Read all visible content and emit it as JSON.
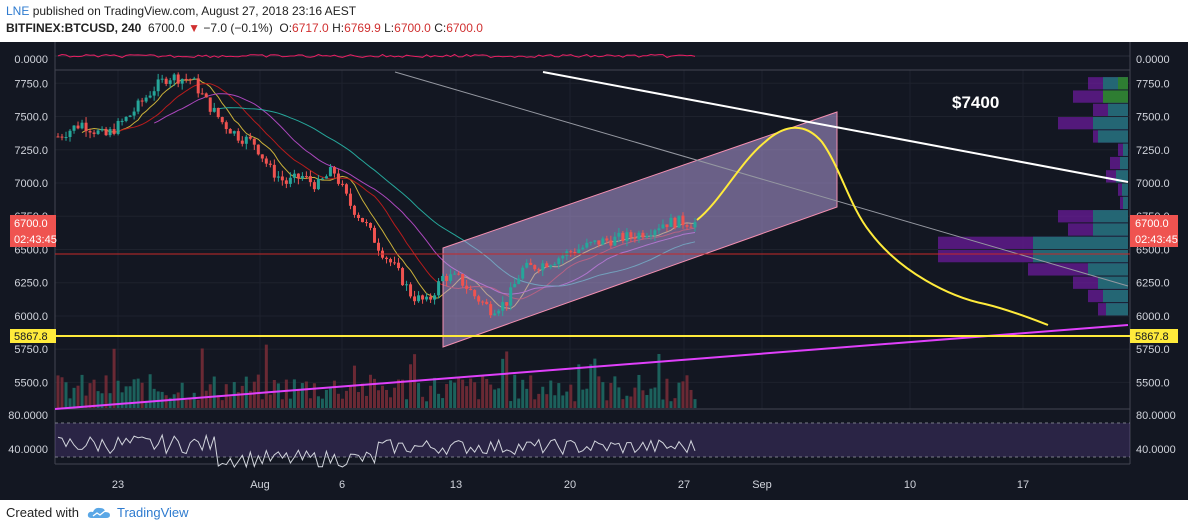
{
  "header": {
    "author": "LNE",
    "published": "published on TradingView.com, August 27, 2018 23:16 AEST",
    "symbol": "BITFINEX:BTCUSD, 240",
    "last": "6700.0",
    "change": "−7.0 (−0.1%)",
    "o_label": "O:",
    "o_value": "6717.0",
    "h_label": "H:",
    "h_value": "6769.9",
    "l_label": "L:",
    "l_value": "6700.0",
    "c_label": "C:",
    "c_value": "6700.0"
  },
  "footer": {
    "created_with": "Created with",
    "brand": "TradingView"
  },
  "colors": {
    "background": "#131722",
    "up": "#26a69a",
    "down": "#ef5350",
    "channel": "#b39ddb",
    "projection": "#ffeb3b",
    "support": "#ffeb3b",
    "trend": "#e040fb",
    "badge": "#ef5350"
  },
  "chart_data": {
    "type": "candlestick",
    "price_axis": {
      "ylim": [
        5300,
        7850
      ],
      "ticks": [
        "7750.0",
        "7500.0",
        "7250.0",
        "7000.0",
        "6750.0",
        "6500.0",
        "6250.0",
        "6000.0",
        "5750.0",
        "5500.0"
      ],
      "tick_values": [
        7750,
        7500,
        7250,
        7000,
        6750,
        6500,
        6250,
        6000,
        5750,
        5500
      ]
    },
    "time_axis": {
      "labels": [
        "23",
        "Aug",
        "6",
        "13",
        "20",
        "27",
        "Sep",
        "10",
        "17"
      ]
    },
    "top_indicator": {
      "label": "0.0000"
    },
    "price_badge": {
      "value": "6700.0",
      "countdown": "02:43:45"
    },
    "support_level": {
      "value": "5867.8",
      "label": "5867.8"
    },
    "annotation": "$7400",
    "rsi": {
      "ticks": [
        "80.0000",
        "40.0000"
      ],
      "tick_values": [
        80,
        40
      ],
      "band": [
        30,
        70
      ]
    },
    "price_path": [
      [
        0,
        7350
      ],
      [
        3,
        7450
      ],
      [
        6,
        7350
      ],
      [
        9,
        7500
      ],
      [
        12,
        7700
      ],
      [
        14,
        7800
      ],
      [
        17,
        7780
      ],
      [
        19,
        7600
      ],
      [
        21,
        7450
      ],
      [
        23,
        7350
      ],
      [
        25,
        7300
      ],
      [
        27,
        7100
      ],
      [
        29,
        7000
      ],
      [
        31,
        7050
      ],
      [
        33,
        6980
      ],
      [
        35,
        7100
      ],
      [
        37,
        6850
      ],
      [
        39,
        6700
      ],
      [
        41,
        6500
      ],
      [
        43,
        6350
      ],
      [
        45,
        6150
      ],
      [
        47,
        6100
      ],
      [
        49,
        6300
      ],
      [
        51,
        6280
      ],
      [
        53,
        6150
      ],
      [
        55,
        6050
      ],
      [
        57,
        6100
      ],
      [
        59,
        6350
      ],
      [
        61,
        6380
      ],
      [
        63,
        6420
      ],
      [
        65,
        6480
      ],
      [
        67,
        6520
      ],
      [
        69,
        6560
      ],
      [
        71,
        6580
      ],
      [
        73,
        6600
      ],
      [
        75,
        6640
      ],
      [
        77,
        6700
      ],
      [
        79,
        6710
      ],
      [
        81,
        6700
      ]
    ],
    "volume_axis": {
      "ylim": [
        0,
        100
      ]
    }
  }
}
